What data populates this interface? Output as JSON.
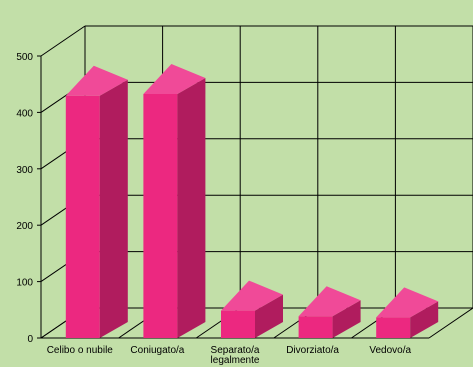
{
  "chart_data": {
    "type": "bar",
    "style": "3d",
    "title": "",
    "xlabel": "",
    "ylabel": "",
    "categories": [
      "Celibo o nubile",
      "Coniugato/a",
      "Separato/a legalmente",
      "Divorziato/a",
      "Vedovo/a"
    ],
    "category_lines": [
      [
        "Celibo o nubile"
      ],
      [
        "Coniugato/a"
      ],
      [
        "Separato/a",
        "legalmente"
      ],
      [
        "Divorziato/a"
      ],
      [
        "Vedovo/a"
      ]
    ],
    "values": [
      458,
      461,
      77,
      67,
      65
    ],
    "ylim": [
      0,
      500
    ],
    "yticks": [
      "0",
      "100",
      "200",
      "300",
      "400",
      "500"
    ],
    "grid": true,
    "legend": "none",
    "colors": {
      "background": "#c2dfa8",
      "bar_front": "#ec2880",
      "bar_side": "#b01c5e",
      "bar_top": "#f04a98",
      "grid": "#000000"
    }
  }
}
